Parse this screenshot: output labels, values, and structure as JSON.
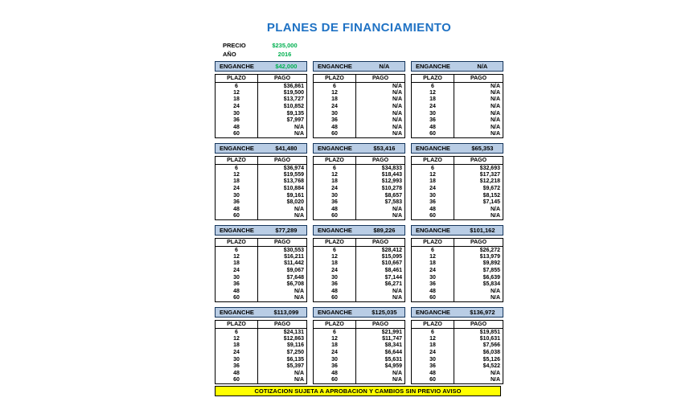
{
  "page_title": "PLANES DE FINANCIAMIENTO",
  "info": {
    "precio_label": "PRECIO",
    "precio_value": "$235,000",
    "anio_label": "AÑO",
    "anio_value": "2016"
  },
  "enganche_label": "ENGANCHE",
  "column_headers": {
    "plazo": "PLAZO",
    "pago": "PAGO"
  },
  "plazos": [
    "6",
    "12",
    "18",
    "24",
    "30",
    "36",
    "48",
    "60"
  ],
  "tables": [
    {
      "enganche": "$42,000",
      "green": true,
      "pagos": [
        "$36,861",
        "$19,500",
        "$13,727",
        "$10,852",
        "$9,135",
        "$7,997",
        "N/A",
        "N/A"
      ]
    },
    {
      "enganche": "N/A",
      "green": false,
      "pagos": [
        "N/A",
        "N/A",
        "N/A",
        "N/A",
        "N/A",
        "N/A",
        "N/A",
        "N/A"
      ]
    },
    {
      "enganche": "N/A",
      "green": false,
      "pagos": [
        "N/A",
        "N/A",
        "N/A",
        "N/A",
        "N/A",
        "N/A",
        "N/A",
        "N/A"
      ]
    },
    {
      "enganche": "$41,480",
      "green": false,
      "pagos": [
        "$36,974",
        "$19,559",
        "$13,768",
        "$10,884",
        "$9,161",
        "$8,020",
        "N/A",
        "N/A"
      ]
    },
    {
      "enganche": "$53,416",
      "green": false,
      "pagos": [
        "$34,833",
        "$18,443",
        "$12,993",
        "$10,278",
        "$8,657",
        "$7,583",
        "N/A",
        "N/A"
      ]
    },
    {
      "enganche": "$65,353",
      "green": false,
      "pagos": [
        "$32,693",
        "$17,327",
        "$12,218",
        "$9,672",
        "$8,152",
        "$7,145",
        "N/A",
        "N/A"
      ]
    },
    {
      "enganche": "$77,289",
      "green": false,
      "pagos": [
        "$30,553",
        "$16,211",
        "$11,442",
        "$9,067",
        "$7,648",
        "$6,708",
        "N/A",
        "N/A"
      ]
    },
    {
      "enganche": "$89,226",
      "green": false,
      "pagos": [
        "$28,412",
        "$15,095",
        "$10,667",
        "$8,461",
        "$7,144",
        "$6,271",
        "N/A",
        "N/A"
      ]
    },
    {
      "enganche": "$101,162",
      "green": false,
      "pagos": [
        "$26,272",
        "$13,979",
        "$9,892",
        "$7,855",
        "$6,639",
        "$5,834",
        "N/A",
        "N/A"
      ]
    },
    {
      "enganche": "$113,099",
      "green": false,
      "pagos": [
        "$24,131",
        "$12,863",
        "$9,116",
        "$7,250",
        "$6,135",
        "$5,397",
        "N/A",
        "N/A"
      ]
    },
    {
      "enganche": "$125,035",
      "green": false,
      "pagos": [
        "$21,991",
        "$11,747",
        "$8,341",
        "$6,644",
        "$5,631",
        "$4,959",
        "N/A",
        "N/A"
      ]
    },
    {
      "enganche": "$136,972",
      "green": false,
      "pagos": [
        "$19,851",
        "$10,631",
        "$7,566",
        "$6,038",
        "$5,126",
        "$4,522",
        "N/A",
        "N/A"
      ]
    }
  ],
  "footer": {
    "text": "COTIZACION SUJETA A APROBACION Y CAMBIOS SIN PREVIO AVISO"
  },
  "colors": {
    "title_blue": "#1F72C4",
    "value_green": "#00B050",
    "header_fill": "#B9CDE5",
    "header_border": "#16365C",
    "footer_yellow": "#FFFF00"
  }
}
